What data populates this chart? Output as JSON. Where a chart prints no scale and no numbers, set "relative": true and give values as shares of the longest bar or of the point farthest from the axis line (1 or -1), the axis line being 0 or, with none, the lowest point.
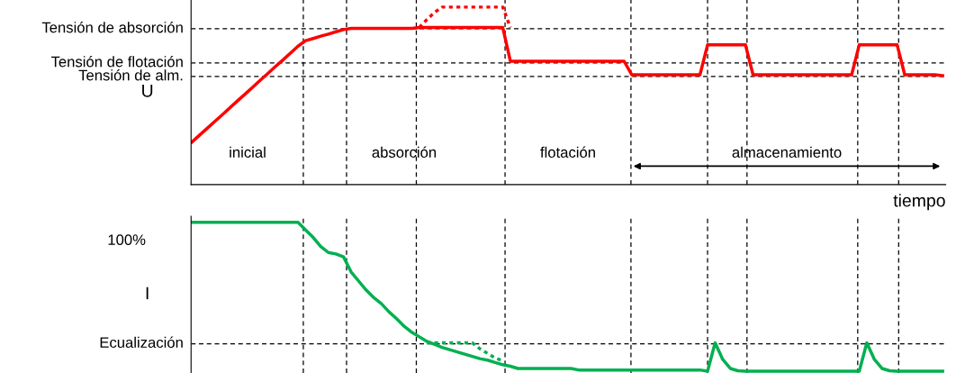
{
  "chart_data": [
    {
      "type": "line",
      "relative": true,
      "ylabel": "U",
      "xlabel": "tiempo",
      "categories": [
        null,
        null,
        null,
        null,
        null,
        null,
        null,
        null,
        null,
        null,
        null,
        null,
        null,
        null,
        null,
        null,
        null,
        null,
        null,
        null,
        null,
        null,
        null,
        null,
        null,
        null,
        null,
        null,
        null,
        null,
        null,
        null,
        null,
        null,
        null,
        null,
        null,
        null,
        null,
        null,
        null,
        null,
        null,
        null,
        null,
        null,
        null,
        null,
        null,
        null,
        null,
        null,
        null,
        null,
        null,
        null,
        null,
        null,
        null,
        null,
        null,
        null,
        null,
        null,
        null,
        null,
        null,
        null,
        null,
        null,
        null,
        null,
        null,
        null,
        null,
        null,
        null,
        null,
        null,
        null,
        null,
        null,
        null,
        null,
        null,
        null,
        null,
        null,
        null,
        null,
        null,
        null,
        null,
        null,
        null,
        null,
        null,
        null,
        null,
        null
      ],
      "series": [
        {
          "color": "#ff0000",
          "line_style": "solid",
          "values": [
            0.239,
            0.278,
            0.316,
            0.355,
            0.393,
            0.432,
            0.471,
            0.509,
            0.548,
            0.587,
            0.625,
            0.664,
            0.702,
            0.741,
            0.78,
            0.811,
            0.823,
            0.836,
            0.848,
            0.861,
            0.873,
            0.88,
            0.88,
            0.88,
            0.88,
            0.88,
            0.88,
            0.88,
            0.88,
            0.88,
            0.885,
            0.885,
            0.885,
            0.885,
            0.885,
            0.885,
            0.885,
            0.885,
            0.885,
            0.885,
            0.885,
            0.885,
            0.695,
            0.695,
            0.695,
            0.695,
            0.695,
            0.695,
            0.695,
            0.695,
            0.695,
            0.695,
            0.695,
            0.695,
            0.695,
            0.695,
            0.695,
            0.695,
            0.619,
            0.619,
            0.619,
            0.619,
            0.619,
            0.619,
            0.619,
            0.619,
            0.619,
            0.619,
            0.787,
            0.787,
            0.787,
            0.787,
            0.787,
            0.787,
            0.619,
            0.619,
            0.619,
            0.619,
            0.619,
            0.619,
            0.619,
            0.619,
            0.619,
            0.619,
            0.619,
            0.619,
            0.619,
            0.619,
            0.787,
            0.787,
            0.787,
            0.787,
            0.787,
            0.787,
            0.619,
            0.619,
            0.619,
            0.619,
            0.619,
            0.614
          ]
        },
        {
          "color": "#ff0000",
          "line_style": "dotted",
          "values": [
            null,
            null,
            null,
            null,
            null,
            null,
            null,
            null,
            null,
            null,
            null,
            null,
            null,
            null,
            null,
            null,
            null,
            null,
            null,
            null,
            null,
            null,
            null,
            null,
            null,
            null,
            null,
            null,
            null,
            null,
            0.885,
            0.93,
            0.97,
            1.0,
            1.0,
            1.0,
            1.0,
            1.0,
            1.0,
            1.0,
            1.0,
            1.0,
            0.885,
            null,
            null,
            null,
            null,
            null,
            null,
            null,
            null,
            null,
            null,
            null,
            null,
            null,
            null,
            null,
            null,
            null,
            null,
            null,
            null,
            null,
            null,
            null,
            null,
            null,
            null,
            null,
            null,
            null,
            null,
            null,
            null,
            null,
            null,
            null,
            null,
            null,
            null,
            null,
            null,
            null,
            null,
            null,
            null,
            null,
            null,
            null,
            null,
            null,
            null,
            null,
            null,
            null,
            null,
            null,
            null,
            null
          ]
        }
      ],
      "ref_lines": [
        {
          "axis": "y",
          "value": 0.878,
          "label": "Tensión de absorción",
          "line_style": "dashed",
          "color": "#000000"
        },
        {
          "axis": "y",
          "value": 0.685,
          "label": "Tensión de flotación",
          "line_style": "dashed",
          "color": "#000000"
        },
        {
          "axis": "y",
          "value": 0.609,
          "label": "Tensión de alm.",
          "line_style": "dashed",
          "color": "#000000"
        }
      ],
      "annotations": [
        "inicial",
        "absorción",
        "flotación",
        "almacenamiento"
      ]
    },
    {
      "type": "line",
      "relative": true,
      "ylabel": "I",
      "categories": [
        null,
        null,
        null,
        null,
        null,
        null,
        null,
        null,
        null,
        null,
        null,
        null,
        null,
        null,
        null,
        null,
        null,
        null,
        null,
        null,
        null,
        null,
        null,
        null,
        null,
        null,
        null,
        null,
        null,
        null,
        null,
        null,
        null,
        null,
        null,
        null,
        null,
        null,
        null,
        null,
        null,
        null,
        null,
        null,
        null,
        null,
        null,
        null,
        null,
        null,
        null,
        null,
        null,
        null,
        null,
        null,
        null,
        null,
        null,
        null,
        null,
        null,
        null,
        null,
        null,
        null,
        null,
        null,
        null,
        null,
        null,
        null,
        null,
        null,
        null,
        null,
        null,
        null,
        null,
        null,
        null,
        null,
        null,
        null,
        null,
        null,
        null,
        null,
        null,
        null,
        null,
        null,
        null,
        null,
        null,
        null,
        null,
        null,
        null,
        null
      ],
      "series": [
        {
          "color": "#00b050",
          "line_style": "solid",
          "values": [
            1.0,
            1.0,
            1.0,
            1.0,
            1.0,
            1.0,
            1.0,
            1.0,
            1.0,
            1.0,
            1.0,
            1.0,
            1.0,
            1.0,
            1.0,
            0.95,
            0.9,
            0.84,
            0.8,
            0.79,
            0.771,
            0.671,
            0.61,
            0.55,
            0.5,
            0.46,
            0.406,
            0.36,
            0.31,
            0.27,
            0.24,
            0.21,
            0.19,
            0.17,
            0.155,
            0.14,
            0.125,
            0.11,
            0.095,
            0.085,
            0.07,
            0.055,
            0.045,
            0.03,
            0.03,
            0.03,
            0.03,
            0.03,
            0.03,
            0.03,
            0.03,
            0.02,
            0.02,
            0.02,
            0.02,
            0.02,
            0.02,
            0.02,
            0.02,
            0.02,
            0.02,
            0.02,
            0.02,
            0.02,
            0.02,
            0.02,
            0.02,
            0.02,
            0.012,
            0.2,
            0.09,
            0.03,
            0.015,
            0.012,
            0.012,
            0.012,
            0.012,
            0.012,
            0.012,
            0.012,
            0.012,
            0.012,
            0.012,
            0.012,
            0.012,
            0.012,
            0.012,
            0.012,
            0.012,
            0.2,
            0.09,
            0.03,
            0.015,
            0.012,
            0.012,
            0.012,
            0.012,
            0.012,
            0.012,
            0.012
          ]
        },
        {
          "color": "#00b050",
          "line_style": "dotted",
          "values": [
            null,
            null,
            null,
            null,
            null,
            null,
            null,
            null,
            null,
            null,
            null,
            null,
            null,
            null,
            null,
            null,
            null,
            null,
            null,
            null,
            null,
            null,
            null,
            null,
            null,
            null,
            null,
            null,
            null,
            null,
            null,
            0.2,
            0.2,
            0.2,
            0.2,
            0.2,
            0.2,
            0.2,
            0.16,
            0.13,
            0.1,
            0.08,
            null,
            null,
            null,
            null,
            null,
            null,
            null,
            null,
            null,
            null,
            null,
            null,
            null,
            null,
            null,
            null,
            null,
            null,
            null,
            null,
            null,
            null,
            null,
            null,
            null,
            null,
            null,
            null,
            null,
            null,
            null,
            null,
            null,
            null,
            null,
            null,
            null,
            null,
            null,
            null,
            null,
            null,
            null,
            null,
            null,
            null,
            null,
            null,
            null,
            null,
            null,
            null,
            null,
            null,
            null,
            null,
            null,
            null
          ]
        }
      ],
      "ref_lines": [
        {
          "axis": "y",
          "value": 0.194,
          "label": "Ecualización",
          "line_style": "dashed",
          "color": "#000000"
        }
      ],
      "annotations": [
        "100%"
      ]
    }
  ]
}
